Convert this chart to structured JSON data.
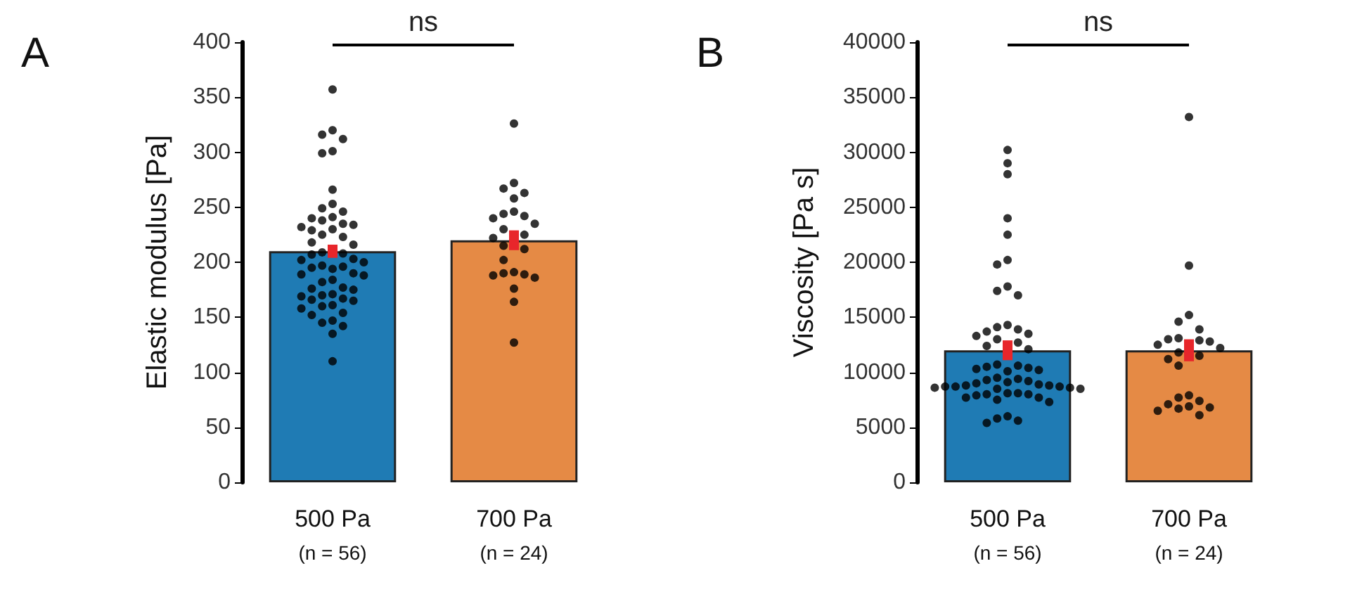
{
  "chart_data": [
    {
      "type": "bar",
      "title": "A",
      "ylabel": "Elastic modulus [Pa]",
      "categories": [
        "500 Pa\n(n = 56)",
        "700 Pa\n(n = 24)"
      ],
      "ylim": [
        0,
        400
      ],
      "yticks": [
        0,
        50,
        100,
        150,
        200,
        250,
        300,
        350,
        400
      ],
      "grid": false,
      "annotations": [
        "ns"
      ],
      "series": [
        {
          "colors": [
            "#1f7bb4",
            "#e58a45"
          ],
          "values": [
            210,
            220
          ],
          "errors": [
            6,
            9
          ]
        },
        {
          "type": "scatter",
          "color": "#000000",
          "marker": "circle",
          "x": [
            "500 Pa\n(n = 56)",
            "500 Pa\n(n = 56)",
            "500 Pa\n(n = 56)",
            "500 Pa\n(n = 56)",
            "500 Pa\n(n = 56)",
            "500 Pa\n(n = 56)",
            "500 Pa\n(n = 56)",
            "500 Pa\n(n = 56)",
            "500 Pa\n(n = 56)",
            "500 Pa\n(n = 56)",
            "500 Pa\n(n = 56)",
            "500 Pa\n(n = 56)",
            "500 Pa\n(n = 56)",
            "500 Pa\n(n = 56)",
            "500 Pa\n(n = 56)",
            "500 Pa\n(n = 56)",
            "500 Pa\n(n = 56)",
            "500 Pa\n(n = 56)",
            "500 Pa\n(n = 56)",
            "500 Pa\n(n = 56)",
            "500 Pa\n(n = 56)",
            "500 Pa\n(n = 56)",
            "500 Pa\n(n = 56)",
            "500 Pa\n(n = 56)",
            "500 Pa\n(n = 56)",
            "500 Pa\n(n = 56)",
            "500 Pa\n(n = 56)",
            "500 Pa\n(n = 56)",
            "500 Pa\n(n = 56)",
            "500 Pa\n(n = 56)",
            "500 Pa\n(n = 56)",
            "500 Pa\n(n = 56)",
            "500 Pa\n(n = 56)",
            "500 Pa\n(n = 56)",
            "500 Pa\n(n = 56)",
            "500 Pa\n(n = 56)",
            "500 Pa\n(n = 56)",
            "500 Pa\n(n = 56)",
            "500 Pa\n(n = 56)",
            "500 Pa\n(n = 56)",
            "500 Pa\n(n = 56)",
            "500 Pa\n(n = 56)",
            "500 Pa\n(n = 56)",
            "500 Pa\n(n = 56)",
            "500 Pa\n(n = 56)",
            "500 Pa\n(n = 56)",
            "500 Pa\n(n = 56)",
            "500 Pa\n(n = 56)",
            "500 Pa\n(n = 56)",
            "500 Pa\n(n = 56)",
            "500 Pa\n(n = 56)",
            "500 Pa\n(n = 56)",
            "500 Pa\n(n = 56)",
            "500 Pa\n(n = 56)",
            "500 Pa\n(n = 56)",
            "500 Pa\n(n = 56)",
            "700 Pa\n(n = 24)",
            "700 Pa\n(n = 24)",
            "700 Pa\n(n = 24)",
            "700 Pa\n(n = 24)",
            "700 Pa\n(n = 24)",
            "700 Pa\n(n = 24)",
            "700 Pa\n(n = 24)",
            "700 Pa\n(n = 24)",
            "700 Pa\n(n = 24)",
            "700 Pa\n(n = 24)",
            "700 Pa\n(n = 24)",
            "700 Pa\n(n = 24)",
            "700 Pa\n(n = 24)",
            "700 Pa\n(n = 24)",
            "700 Pa\n(n = 24)",
            "700 Pa\n(n = 24)",
            "700 Pa\n(n = 24)",
            "700 Pa\n(n = 24)",
            "700 Pa\n(n = 24)",
            "700 Pa\n(n = 24)",
            "700 Pa\n(n = 24)",
            "700 Pa\n(n = 24)",
            "700 Pa\n(n = 24)",
            "700 Pa\n(n = 24)"
          ],
          "values": [
            357,
            320,
            316,
            312,
            301,
            299,
            266,
            253,
            249,
            246,
            241,
            240,
            238,
            235,
            234,
            232,
            230,
            229,
            225,
            223,
            218,
            216,
            209,
            208,
            207,
            203,
            202,
            200,
            197,
            196,
            195,
            194,
            190,
            189,
            188,
            184,
            182,
            177,
            176,
            175,
            171,
            170,
            169,
            167,
            166,
            165,
            161,
            160,
            158,
            154,
            152,
            147,
            145,
            142,
            135,
            110,
            326,
            272,
            267,
            263,
            258,
            246,
            244,
            242,
            240,
            235,
            230,
            225,
            222,
            215,
            212,
            202,
            191,
            190,
            189,
            188,
            186,
            176,
            164,
            127
          ]
        }
      ]
    },
    {
      "type": "bar",
      "title": "B",
      "ylabel": "Viscosity [Pa s]",
      "categories": [
        "500 Pa\n(n = 56)",
        "700 Pa\n(n = 24)"
      ],
      "ylim": [
        0,
        40000
      ],
      "yticks": [
        0,
        5000,
        10000,
        15000,
        20000,
        25000,
        30000,
        35000,
        40000
      ],
      "grid": false,
      "annotations": [
        "ns"
      ],
      "series": [
        {
          "colors": [
            "#1f7bb4",
            "#e58a45"
          ],
          "values": [
            12000,
            12000
          ],
          "errors": [
            900,
            1000
          ]
        },
        {
          "type": "scatter",
          "color": "#000000",
          "marker": "circle",
          "x": [
            "500 Pa\n(n = 56)",
            "500 Pa\n(n = 56)",
            "500 Pa\n(n = 56)",
            "500 Pa\n(n = 56)",
            "500 Pa\n(n = 56)",
            "500 Pa\n(n = 56)",
            "500 Pa\n(n = 56)",
            "500 Pa\n(n = 56)",
            "500 Pa\n(n = 56)",
            "500 Pa\n(n = 56)",
            "500 Pa\n(n = 56)",
            "500 Pa\n(n = 56)",
            "500 Pa\n(n = 56)",
            "500 Pa\n(n = 56)",
            "500 Pa\n(n = 56)",
            "500 Pa\n(n = 56)",
            "500 Pa\n(n = 56)",
            "500 Pa\n(n = 56)",
            "500 Pa\n(n = 56)",
            "500 Pa\n(n = 56)",
            "500 Pa\n(n = 56)",
            "500 Pa\n(n = 56)",
            "500 Pa\n(n = 56)",
            "500 Pa\n(n = 56)",
            "500 Pa\n(n = 56)",
            "500 Pa\n(n = 56)",
            "500 Pa\n(n = 56)",
            "500 Pa\n(n = 56)",
            "500 Pa\n(n = 56)",
            "500 Pa\n(n = 56)",
            "500 Pa\n(n = 56)",
            "500 Pa\n(n = 56)",
            "500 Pa\n(n = 56)",
            "500 Pa\n(n = 56)",
            "500 Pa\n(n = 56)",
            "500 Pa\n(n = 56)",
            "500 Pa\n(n = 56)",
            "500 Pa\n(n = 56)",
            "500 Pa\n(n = 56)",
            "500 Pa\n(n = 56)",
            "500 Pa\n(n = 56)",
            "500 Pa\n(n = 56)",
            "500 Pa\n(n = 56)",
            "500 Pa\n(n = 56)",
            "500 Pa\n(n = 56)",
            "500 Pa\n(n = 56)",
            "500 Pa\n(n = 56)",
            "500 Pa\n(n = 56)",
            "500 Pa\n(n = 56)",
            "500 Pa\n(n = 56)",
            "500 Pa\n(n = 56)",
            "500 Pa\n(n = 56)",
            "500 Pa\n(n = 56)",
            "500 Pa\n(n = 56)",
            "500 Pa\n(n = 56)",
            "500 Pa\n(n = 56)",
            "700 Pa\n(n = 24)",
            "700 Pa\n(n = 24)",
            "700 Pa\n(n = 24)",
            "700 Pa\n(n = 24)",
            "700 Pa\n(n = 24)",
            "700 Pa\n(n = 24)",
            "700 Pa\n(n = 24)",
            "700 Pa\n(n = 24)",
            "700 Pa\n(n = 24)",
            "700 Pa\n(n = 24)",
            "700 Pa\n(n = 24)",
            "700 Pa\n(n = 24)",
            "700 Pa\n(n = 24)",
            "700 Pa\n(n = 24)",
            "700 Pa\n(n = 24)",
            "700 Pa\n(n = 24)",
            "700 Pa\n(n = 24)",
            "700 Pa\n(n = 24)",
            "700 Pa\n(n = 24)",
            "700 Pa\n(n = 24)",
            "700 Pa\n(n = 24)",
            "700 Pa\n(n = 24)",
            "700 Pa\n(n = 24)",
            "700 Pa\n(n = 24)"
          ],
          "values": [
            30200,
            29000,
            28000,
            24000,
            22500,
            20200,
            19800,
            17800,
            17400,
            17000,
            14300,
            14100,
            13900,
            13700,
            13500,
            13300,
            13000,
            12700,
            12400,
            12100,
            10700,
            10600,
            10500,
            10400,
            10300,
            10200,
            10100,
            9500,
            9400,
            9300,
            9200,
            9100,
            9000,
            8900,
            8800,
            8800,
            8700,
            8700,
            8700,
            8600,
            8600,
            8500,
            8500,
            8100,
            8100,
            8000,
            8000,
            7900,
            7500,
            7700,
            7700,
            7300,
            6000,
            5800,
            5600,
            5400,
            33200,
            19700,
            15200,
            14600,
            13900,
            13100,
            13000,
            12900,
            12800,
            12500,
            12200,
            11800,
            11500,
            11200,
            10600,
            7900,
            7700,
            7400,
            7100,
            6900,
            6800,
            6700,
            6500,
            6100
          ]
        }
      ]
    }
  ]
}
